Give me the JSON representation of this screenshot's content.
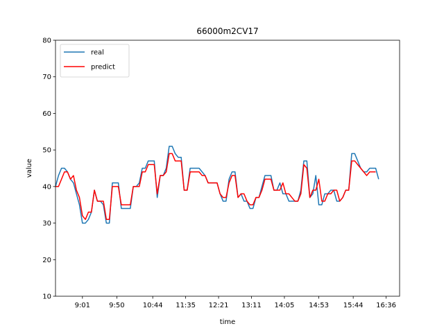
{
  "chart_data": {
    "type": "line",
    "title": "66000m2CV17",
    "xlabel": "time",
    "ylabel": "value",
    "ylim": [
      10,
      80
    ],
    "yticks": [
      10,
      20,
      30,
      40,
      50,
      60,
      70,
      80
    ],
    "xlim": [
      0,
      115
    ],
    "xticks": [
      {
        "x": 9,
        "label": "9:01"
      },
      {
        "x": 20.5,
        "label": "9:50"
      },
      {
        "x": 32.5,
        "label": "10:44"
      },
      {
        "x": 43.5,
        "label": "11:35"
      },
      {
        "x": 54.5,
        "label": "12:21"
      },
      {
        "x": 65.5,
        "label": "13:11"
      },
      {
        "x": 76.5,
        "label": "14:05"
      },
      {
        "x": 88,
        "label": "14:53"
      },
      {
        "x": 99.5,
        "label": "15:44"
      },
      {
        "x": 110.5,
        "label": "16:36"
      }
    ],
    "legend": "upper-left",
    "grid": false,
    "series": [
      {
        "name": "real",
        "color": "#1f77b4",
        "values": [
          40,
          43,
          45,
          45,
          44,
          42,
          41,
          38,
          35,
          30,
          30,
          31,
          33,
          39,
          36,
          36,
          35,
          30,
          30,
          41,
          41,
          41,
          34,
          34,
          34,
          34,
          40,
          40,
          41,
          45,
          45,
          47,
          47,
          47,
          37,
          43,
          43,
          45,
          51,
          51,
          49,
          48,
          48,
          39,
          39,
          45,
          45,
          45,
          45,
          44,
          43,
          41,
          41,
          41,
          41,
          38,
          36,
          36,
          42,
          44,
          44,
          37,
          38,
          36,
          36,
          34,
          34,
          37,
          37,
          40,
          43,
          43,
          43,
          39,
          39,
          41,
          38,
          38,
          36,
          36,
          36,
          36,
          39,
          47,
          47,
          37,
          38,
          43,
          35,
          35,
          38,
          38,
          39,
          39,
          36,
          36,
          37,
          39,
          39,
          49,
          49,
          47,
          45,
          44,
          44,
          45,
          45,
          45,
          42
        ]
      },
      {
        "name": "predict",
        "color": "#ff0000",
        "values": [
          40,
          40,
          42,
          44,
          44,
          42,
          43,
          39,
          37,
          32,
          31,
          33,
          33,
          39,
          36,
          36,
          36,
          31,
          31,
          40,
          40,
          40,
          35,
          35,
          35,
          35,
          40,
          40,
          40,
          44,
          44,
          46,
          46,
          46,
          38,
          43,
          43,
          44,
          49,
          49,
          47,
          47,
          47,
          39,
          39,
          44,
          44,
          44,
          44,
          43,
          43,
          41,
          41,
          41,
          41,
          38,
          37,
          37,
          41,
          43,
          43,
          37,
          38,
          38,
          36,
          35,
          35,
          37,
          37,
          39,
          42,
          42,
          42,
          39,
          39,
          39,
          41,
          38,
          38,
          37,
          36,
          36,
          38,
          46,
          45,
          37,
          39,
          39,
          42,
          36,
          36,
          38,
          38,
          39,
          39,
          36,
          37,
          39,
          39,
          47,
          47,
          46,
          45,
          44,
          43,
          44,
          44,
          44
        ]
      }
    ]
  }
}
